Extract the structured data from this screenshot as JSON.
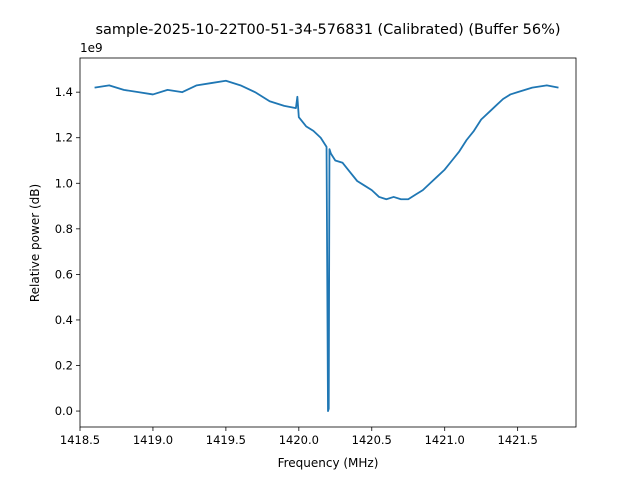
{
  "chart_data": {
    "type": "line",
    "title": "sample-2025-10-22T00-51-34-576831 (Calibrated) (Buffer 56%)",
    "xlabel": "Frequency (MHz)",
    "ylabel": "Relative power (dB)",
    "y_offset_label": "1e9",
    "xlim": [
      1418.5,
      1421.9
    ],
    "ylim": [
      -0.07,
      1.55
    ],
    "y_scale_factor": 1000000000,
    "x_ticks": [
      {
        "value": 1418.5,
        "label": "1418.5"
      },
      {
        "value": 1419.0,
        "label": "1419.0"
      },
      {
        "value": 1419.5,
        "label": "1419.5"
      },
      {
        "value": 1420.0,
        "label": "1420.0"
      },
      {
        "value": 1420.5,
        "label": "1420.5"
      },
      {
        "value": 1421.0,
        "label": "1421.0"
      },
      {
        "value": 1421.5,
        "label": "1421.5"
      }
    ],
    "y_ticks": [
      {
        "value": 0.0,
        "label": "0.0"
      },
      {
        "value": 0.2,
        "label": "0.2"
      },
      {
        "value": 0.4,
        "label": "0.4"
      },
      {
        "value": 0.6,
        "label": "0.6"
      },
      {
        "value": 0.8,
        "label": "0.8"
      },
      {
        "value": 1.0,
        "label": "1.0"
      },
      {
        "value": 1.2,
        "label": "1.2"
      },
      {
        "value": 1.4,
        "label": "1.4"
      }
    ],
    "grid": false,
    "line_color": "#1f77b4",
    "series": [
      {
        "x": [
          1418.6,
          1418.7,
          1418.8,
          1418.9,
          1419.0,
          1419.1,
          1419.2,
          1419.3,
          1419.4,
          1419.5,
          1419.6,
          1419.7,
          1419.8,
          1419.9,
          1419.98,
          1419.99,
          1420.0,
          1420.05,
          1420.1,
          1420.15,
          1420.19,
          1420.2,
          1420.205,
          1420.21,
          1420.22,
          1420.25,
          1420.3,
          1420.35,
          1420.4,
          1420.45,
          1420.5,
          1420.55,
          1420.6,
          1420.65,
          1420.7,
          1420.75,
          1420.8,
          1420.85,
          1420.9,
          1420.95,
          1421.0,
          1421.05,
          1421.1,
          1421.15,
          1421.2,
          1421.25,
          1421.3,
          1421.35,
          1421.4,
          1421.45,
          1421.5,
          1421.55,
          1421.6,
          1421.7,
          1421.78
        ],
        "y": [
          1.42,
          1.43,
          1.41,
          1.4,
          1.39,
          1.41,
          1.4,
          1.43,
          1.44,
          1.45,
          1.43,
          1.4,
          1.36,
          1.34,
          1.33,
          1.38,
          1.29,
          1.25,
          1.23,
          1.2,
          1.16,
          0.0,
          0.01,
          1.15,
          1.13,
          1.1,
          1.09,
          1.05,
          1.01,
          0.99,
          0.97,
          0.94,
          0.93,
          0.94,
          0.93,
          0.93,
          0.95,
          0.97,
          1.0,
          1.03,
          1.06,
          1.1,
          1.14,
          1.19,
          1.23,
          1.28,
          1.31,
          1.34,
          1.37,
          1.39,
          1.4,
          1.41,
          1.42,
          1.43,
          1.42
        ]
      }
    ]
  }
}
